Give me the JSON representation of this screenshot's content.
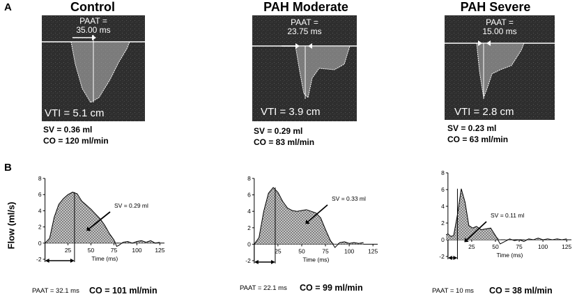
{
  "panel_labels": {
    "a": "A",
    "b": "B"
  },
  "panelA": [
    {
      "title": "Control",
      "paat_label": "PAAT =",
      "paat_value": "35.00 ms",
      "vti": "VTI = 5.1 cm",
      "sv": "SV = 0.36 ml",
      "co": "CO = 120 ml/min"
    },
    {
      "title": "PAH Moderate",
      "paat_label": "PAAT =",
      "paat_value": "23.75 ms",
      "vti": "VTI = 3.9 cm",
      "sv": "SV = 0.29 ml",
      "co": "CO = 83 ml/min"
    },
    {
      "title": "PAH Severe",
      "paat_label": "PAAT =",
      "paat_value": "15.00 ms",
      "vti": "VTI = 2.8 cm",
      "sv": "SV = 0.23 ml",
      "co": "CO = 63 ml/min"
    }
  ],
  "panelB_ylabel": "Flow (ml/s)",
  "chart_data": [
    {
      "type": "area",
      "xlabel": "Time (ms)",
      "ylabel": "Flow (ml/s)",
      "xlim": [
        -5,
        130
      ],
      "ylim": [
        -2,
        8
      ],
      "xticks": [
        "25",
        "50",
        "75",
        "100",
        "125"
      ],
      "yticks": [
        "-2",
        "0",
        "2",
        "4",
        "6",
        "8"
      ],
      "x": [
        0,
        5,
        10,
        15,
        20,
        25,
        30,
        35,
        40,
        45,
        50,
        55,
        60,
        65,
        70,
        75,
        78,
        80,
        85,
        90,
        95,
        100,
        105,
        110,
        115,
        120,
        125
      ],
      "y": [
        0,
        0.6,
        3.2,
        4.8,
        5.5,
        6.0,
        6.3,
        6.1,
        5.2,
        4.7,
        4.2,
        3.6,
        3.0,
        2.2,
        1.2,
        0.4,
        -0.4,
        -0.3,
        0.1,
        0.2,
        0.0,
        0.2,
        0.3,
        0.1,
        0.3,
        0.0,
        0.1
      ],
      "paat_ms": 32.1,
      "annotation": "SV = 0.29 ml",
      "paat_text": "PAAT = 32.1 ms",
      "co_text": "CO = 101 ml/min"
    },
    {
      "type": "area",
      "xlabel": "Time (ms)",
      "ylabel": "Flow (ml/s)",
      "xlim": [
        -5,
        130
      ],
      "ylim": [
        -2,
        8
      ],
      "xticks": [
        "25",
        "50",
        "75",
        "100",
        "125"
      ],
      "yticks": [
        "-2",
        "0",
        "2",
        "4",
        "6",
        "8"
      ],
      "x": [
        0,
        5,
        10,
        15,
        20,
        25,
        30,
        35,
        40,
        45,
        50,
        55,
        60,
        65,
        70,
        75,
        80,
        85,
        90,
        95,
        100,
        105,
        110,
        115
      ],
      "y": [
        0,
        0.8,
        4.0,
        6.2,
        6.9,
        6.3,
        5.2,
        4.4,
        4.1,
        4.0,
        4.1,
        4.2,
        4.0,
        3.8,
        3.2,
        1.8,
        0.5,
        -0.4,
        0.2,
        0.3,
        0.1,
        0.2,
        0.1,
        0.2
      ],
      "paat_ms": 22.1,
      "annotation": "SV = 0.33 ml",
      "paat_text": "PAAT = 22.1 ms",
      "co_text": "CO = 99 ml/min"
    },
    {
      "type": "area",
      "xlabel": "Time (ms)",
      "ylabel": "Flow (ml/s)",
      "xlim": [
        -5,
        130
      ],
      "ylim": [
        -2,
        8
      ],
      "xticks": [
        "25",
        "50",
        "75",
        "100",
        "125"
      ],
      "yticks": [
        "-2",
        "0",
        "2",
        "4",
        "6",
        "8"
      ],
      "x": [
        -2,
        0,
        3,
        6,
        10,
        14,
        18,
        22,
        26,
        30,
        35,
        40,
        45,
        50,
        55,
        60,
        65,
        70,
        75,
        80,
        85,
        90,
        95,
        100,
        105,
        110,
        115,
        120,
        125
      ],
      "y": [
        0.6,
        0.7,
        0.4,
        0.5,
        3.0,
        6.1,
        4.5,
        1.7,
        1.4,
        1.6,
        1.2,
        1.3,
        1.4,
        0.5,
        -0.5,
        -0.2,
        0.1,
        -0.1,
        0.0,
        -0.2,
        0.1,
        0.0,
        0.2,
        0.0,
        0.1,
        0.0,
        0.1,
        0.0,
        0.1
      ],
      "paat_ms": 10,
      "annotation": "SV = 0.11 ml",
      "paat_text": "PAAT = 10 ms",
      "co_text": "CO = 38 ml/min"
    }
  ]
}
